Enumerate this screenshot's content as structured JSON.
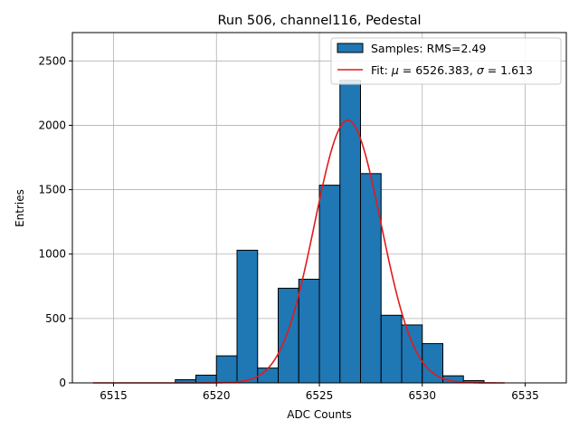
{
  "chart_data": {
    "type": "bar",
    "title": "Run 506, channel116, Pedestal",
    "xlabel": "ADC Counts",
    "ylabel": "Entries",
    "xlim": [
      6513,
      6537
    ],
    "ylim": [
      0,
      2720
    ],
    "xticks": [
      6515,
      6520,
      6525,
      6530,
      6535
    ],
    "yticks": [
      0,
      500,
      1000,
      1500,
      2000,
      2500
    ],
    "grid": true,
    "legend_position": "top-right",
    "histogram": {
      "name": "Samples: RMS=2.49",
      "color": "#1f77b4",
      "bin_edges": [
        6518,
        6519,
        6520,
        6521,
        6522,
        6523,
        6524,
        6525,
        6526,
        6527,
        6528,
        6529,
        6530,
        6531,
        6532,
        6533
      ],
      "counts": [
        25,
        60,
        210,
        1030,
        115,
        735,
        805,
        1535,
        2350,
        1625,
        525,
        450,
        305,
        55,
        18
      ]
    },
    "fit": {
      "name": "Fit: μ = 6526.383, σ = 1.613",
      "color": "#e31a1c",
      "mu": 6526.383,
      "sigma": 1.613,
      "amplitude": 2040,
      "x_range": [
        6514,
        6534
      ]
    },
    "legend": {
      "samples_label": "Samples: RMS=2.49",
      "fit_label_prefix": "Fit: ",
      "fit_mu_symbol": "μ",
      "fit_mu_text": " = 6526.383, ",
      "fit_sigma_symbol": "σ",
      "fit_sigma_text": " = 1.613"
    }
  }
}
